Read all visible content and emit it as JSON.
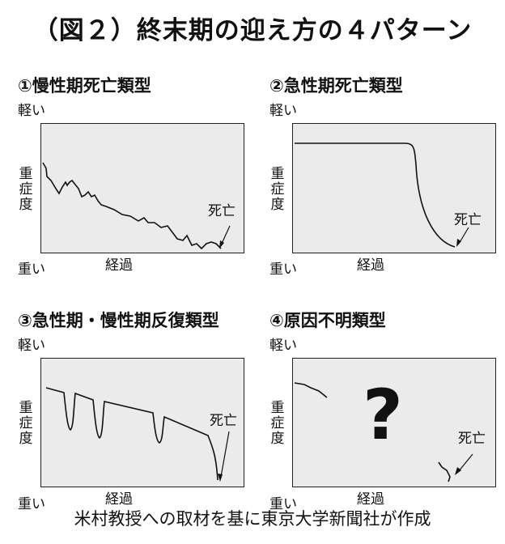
{
  "title": "（図２）終末期の迎え方の４パターン",
  "footer": "米村教授への取材を基に東京大学新聞社が作成",
  "panels": [
    {
      "title": "①慢性期死亡類型",
      "light": "軽い",
      "heavy": "重い",
      "severity": "重症度",
      "time": "経過",
      "death": "死亡"
    },
    {
      "title": "②急性期死亡類型",
      "light": "軽い",
      "heavy": "重い",
      "severity": "重症度",
      "time": "経過",
      "death": "死亡"
    },
    {
      "title": "③急性期・慢性期反復類型",
      "light": "軽い",
      "heavy": "重い",
      "severity": "重症度",
      "time": "経過",
      "death": "死亡"
    },
    {
      "title": "④原因不明類型",
      "light": "軽い",
      "heavy": "重い",
      "severity": "重症度",
      "time": "経過",
      "death": "死亡",
      "unknown_mark": "?"
    }
  ]
}
